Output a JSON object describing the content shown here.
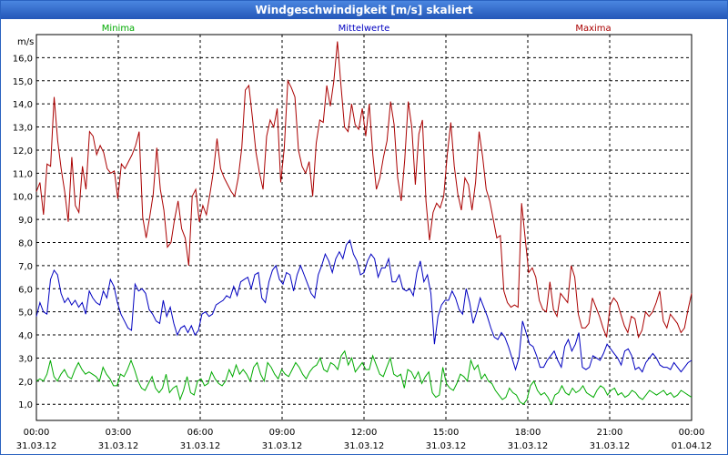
{
  "window": {
    "title": "Windgeschwindigkeit [m/s] skaliert"
  },
  "colors": {
    "min": "#00aa00",
    "mean": "#0000c0",
    "max": "#aa0000",
    "grid": "#000000"
  },
  "chart_data": {
    "type": "line",
    "title": "Windgeschwindigkeit [m/s] skaliert",
    "ylabel": "m/s",
    "ylim": [
      0.3,
      17.0
    ],
    "y_ticks": [
      1.0,
      2.0,
      3.0,
      4.0,
      5.0,
      6.0,
      7.0,
      8.0,
      9.0,
      10.0,
      11.0,
      12.0,
      13.0,
      14.0,
      15.0,
      16.0
    ],
    "y_tick_labels": [
      "1,0",
      "2,0",
      "3,0",
      "4,0",
      "5,0",
      "6,0",
      "7,0",
      "8,0",
      "9,0",
      "10,0",
      "11,0",
      "12,0",
      "13,0",
      "14,0",
      "15,0",
      "16,0"
    ],
    "xlim_hours": [
      0,
      24
    ],
    "x_ticks_hours": [
      0,
      3,
      6,
      9,
      12,
      15,
      18,
      21,
      24
    ],
    "x_tick_labels": [
      {
        "time": "00:00",
        "date": "31.03.12"
      },
      {
        "time": "03:00",
        "date": "31.03.12"
      },
      {
        "time": "06:00",
        "date": "31.03.12"
      },
      {
        "time": "09:00",
        "date": "31.03.12"
      },
      {
        "time": "12:00",
        "date": "31.03.12"
      },
      {
        "time": "15:00",
        "date": "31.03.12"
      },
      {
        "time": "18:00",
        "date": "31.03.12"
      },
      {
        "time": "21:00",
        "date": "31.03.12"
      },
      {
        "time": "00:00",
        "date": "01.04.12"
      }
    ],
    "step_hours": 0.25,
    "series": [
      {
        "name": "Minima",
        "key": "min",
        "values": [
          2.0,
          2.1,
          2.0,
          2.3,
          2.9,
          2.2,
          2.0,
          2.3,
          2.5,
          2.2,
          2.1,
          2.5,
          2.8,
          2.5,
          2.3,
          2.4,
          2.3,
          2.2,
          2.0,
          2.6,
          2.3,
          2.1,
          1.8,
          1.8,
          2.3,
          2.2,
          2.5,
          2.9,
          2.5,
          2.0,
          1.7,
          1.6,
          1.9,
          2.2,
          1.7,
          1.5,
          1.7,
          2.3,
          1.5,
          1.7,
          1.8,
          1.2,
          1.6,
          2.2,
          1.5,
          1.4,
          2.0,
          2.1,
          1.8,
          1.9,
          2.4,
          2.1,
          1.9,
          1.8,
          2.0,
          2.5,
          2.2,
          2.7,
          2.3,
          2.5,
          2.3,
          2.0,
          2.6,
          2.8,
          2.3,
          2.0,
          2.8,
          2.6,
          2.3,
          2.1,
          2.5,
          2.3,
          2.2,
          2.5,
          2.8,
          2.6,
          2.3,
          2.1,
          2.4,
          2.6,
          2.7,
          3.0,
          2.5,
          2.4,
          2.8,
          2.7,
          2.5,
          3.1,
          3.3,
          2.7,
          3.0,
          2.4,
          2.6,
          2.8,
          2.5,
          2.5,
          3.1,
          2.7,
          2.3,
          2.2,
          2.6,
          3.0,
          2.3,
          2.2,
          2.3,
          1.7,
          2.5,
          2.4,
          2.1,
          2.4,
          1.9,
          2.2,
          2.4,
          1.5,
          1.3,
          1.4,
          2.6,
          1.9,
          1.7,
          1.6,
          1.9,
          2.3,
          2.2,
          2.0,
          2.9,
          2.5,
          2.7,
          2.1,
          2.3,
          2.0,
          1.9,
          1.6,
          1.4,
          1.2,
          1.3,
          1.7,
          1.5,
          1.4,
          1.1,
          1.0,
          1.2,
          1.8,
          2.0,
          1.6,
          1.4,
          1.5,
          1.3,
          1.0,
          1.4,
          1.5,
          1.8,
          1.5,
          1.4,
          1.7,
          1.5,
          1.6,
          1.8,
          1.5,
          1.4,
          1.3,
          1.6,
          1.8,
          1.7,
          1.4,
          1.6,
          1.7,
          1.4,
          1.5,
          1.3,
          1.4,
          1.6,
          1.5,
          1.3,
          1.2,
          1.4,
          1.6,
          1.5,
          1.4,
          1.5,
          1.6,
          1.4,
          1.5,
          1.3,
          1.4,
          1.6,
          1.5,
          1.4,
          1.3
        ]
      },
      {
        "name": "Mittelwerte",
        "key": "mean",
        "values": [
          4.8,
          5.4,
          5.0,
          4.9,
          6.4,
          6.8,
          6.6,
          5.8,
          5.4,
          5.6,
          5.3,
          5.5,
          5.2,
          5.4,
          4.9,
          5.9,
          5.6,
          5.4,
          5.3,
          5.9,
          5.6,
          6.4,
          6.1,
          5.4,
          4.9,
          4.6,
          4.3,
          4.2,
          6.2,
          5.9,
          6.0,
          5.8,
          5.1,
          4.9,
          4.6,
          4.5,
          5.5,
          4.8,
          5.2,
          4.5,
          4.0,
          4.3,
          4.4,
          4.1,
          4.4,
          4.0,
          4.2,
          4.9,
          5.0,
          4.8,
          4.9,
          5.3,
          5.4,
          5.5,
          5.7,
          5.6,
          6.1,
          5.7,
          6.3,
          6.4,
          6.5,
          6.0,
          6.6,
          6.7,
          5.6,
          5.4,
          6.3,
          6.8,
          7.0,
          6.4,
          6.2,
          6.7,
          6.6,
          5.9,
          6.6,
          7.0,
          6.6,
          6.2,
          5.8,
          5.6,
          6.6,
          7.0,
          7.5,
          7.2,
          6.7,
          7.3,
          7.6,
          7.3,
          7.9,
          8.1,
          7.5,
          7.2,
          6.6,
          6.7,
          7.2,
          7.5,
          7.3,
          6.5,
          6.9,
          6.9,
          7.3,
          6.3,
          6.3,
          6.6,
          6.0,
          5.9,
          6.0,
          5.7,
          6.7,
          7.2,
          6.3,
          6.6,
          5.8,
          3.6,
          4.8,
          5.3,
          5.5,
          5.5,
          5.9,
          5.6,
          5.1,
          4.9,
          6.0,
          5.4,
          4.5,
          5.0,
          5.6,
          5.2,
          4.8,
          4.3,
          3.9,
          3.8,
          4.1,
          3.9,
          3.5,
          3.0,
          2.5,
          3.0,
          4.6,
          4.1,
          3.6,
          3.5,
          3.1,
          2.6,
          2.6,
          2.9,
          3.1,
          3.3,
          2.9,
          2.6,
          3.5,
          3.8,
          3.3,
          3.6,
          4.1,
          2.6,
          2.5,
          2.6,
          3.1,
          3.0,
          2.9,
          3.2,
          3.6,
          3.4,
          3.2,
          3.0,
          2.7,
          3.3,
          3.4,
          3.1,
          2.5,
          2.6,
          2.4,
          2.8,
          3.0,
          3.2,
          3.0,
          2.7,
          2.6,
          2.6,
          2.5,
          2.8,
          2.6,
          2.4,
          2.6,
          2.8,
          2.9
        ]
      },
      {
        "name": "Maxima",
        "key": "max",
        "values": [
          10.2,
          10.6,
          9.2,
          11.4,
          11.3,
          14.3,
          12.4,
          11.2,
          10.2,
          8.9,
          11.7,
          9.6,
          9.3,
          11.3,
          10.3,
          12.8,
          12.6,
          11.8,
          12.2,
          11.9,
          11.2,
          11.0,
          11.1,
          9.9,
          11.4,
          11.2,
          11.5,
          11.8,
          12.2,
          12.8,
          9.1,
          8.2,
          9.1,
          10.1,
          12.1,
          10.3,
          9.4,
          7.8,
          8.0,
          9.0,
          9.8,
          8.6,
          8.2,
          7.0,
          10.0,
          10.3,
          8.9,
          9.6,
          9.2,
          10.1,
          11.1,
          12.5,
          11.2,
          10.8,
          10.5,
          10.2,
          10.0,
          10.8,
          12.1,
          14.6,
          14.8,
          13.4,
          11.9,
          11.0,
          10.3,
          12.6,
          13.3,
          13.0,
          13.8,
          10.6,
          12.1,
          15.0,
          14.7,
          14.3,
          12.0,
          11.3,
          11.0,
          11.5,
          10.0,
          12.3,
          13.3,
          13.2,
          14.8,
          13.9,
          15.0,
          16.7,
          14.8,
          13.0,
          12.8,
          14.0,
          13.1,
          12.9,
          13.8,
          12.6,
          14.0,
          11.8,
          10.3,
          10.8,
          11.7,
          12.4,
          14.1,
          13.1,
          10.8,
          9.8,
          11.6,
          14.1,
          13.0,
          10.5,
          12.7,
          13.3,
          9.8,
          8.1,
          9.3,
          9.7,
          9.5,
          10.0,
          11.8,
          13.2,
          11.3,
          10.1,
          9.4,
          10.8,
          10.5,
          9.4,
          10.6,
          12.8,
          11.7,
          10.3,
          9.8,
          9.0,
          8.2,
          8.3,
          5.9,
          5.4,
          5.2,
          5.3,
          5.2,
          9.7,
          8.2,
          6.7,
          6.9,
          6.5,
          5.5,
          5.1,
          5.0,
          6.3,
          5.1,
          4.8,
          5.8,
          5.6,
          5.4,
          7.0,
          6.5,
          4.9,
          4.3,
          4.3,
          4.5,
          5.6,
          5.2,
          4.8,
          4.3,
          3.9,
          5.3,
          5.6,
          5.4,
          4.9,
          4.4,
          4.1,
          4.8,
          4.7,
          3.9,
          4.2,
          5.0,
          4.8,
          5.0,
          5.4,
          5.9,
          4.6,
          4.3,
          4.9,
          4.7,
          4.5,
          4.1,
          4.3,
          5.1,
          5.8
        ]
      }
    ]
  }
}
